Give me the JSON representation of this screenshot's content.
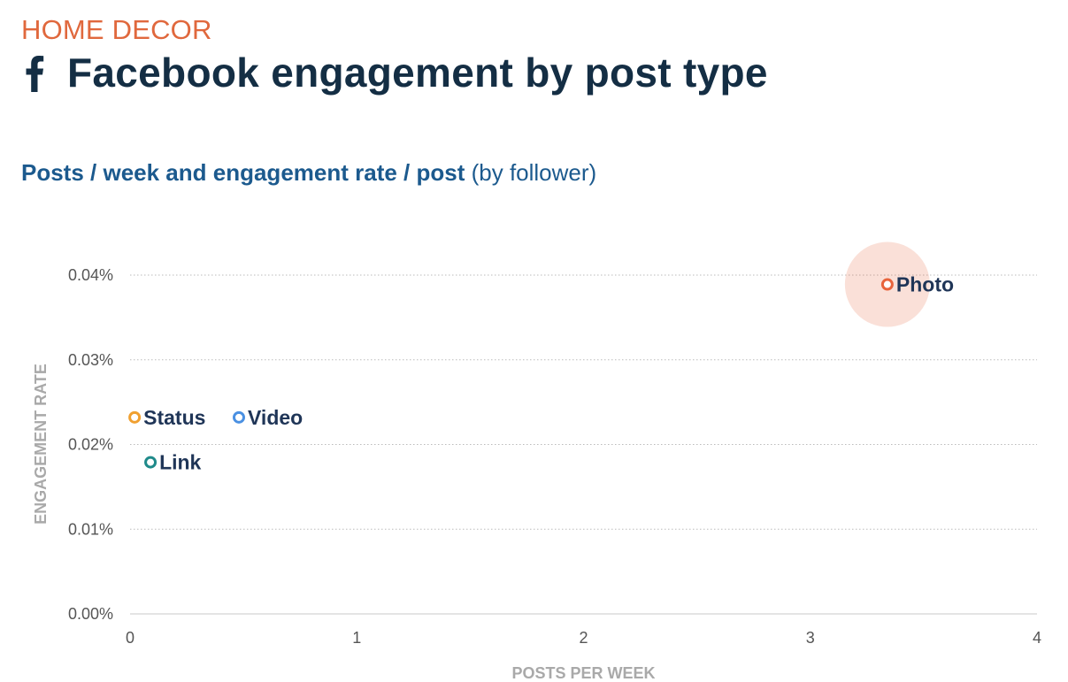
{
  "header": {
    "category": "HOME DECOR",
    "title": "Facebook engagement by post type",
    "subtitle_bold": "Posts / week and engagement rate / post",
    "subtitle_normal": " (by follower)"
  },
  "icons": {
    "brand": "facebook-icon"
  },
  "colors": {
    "category": "#e0683d",
    "title": "#142e44",
    "subtitle": "#1c5a8e",
    "axis_title": "#a9a9a9",
    "tick_label": "#555555",
    "point_label": "#1f3557",
    "grid": "#bbbbbb"
  },
  "chart_data": {
    "type": "scatter",
    "xlabel": "POSTS PER WEEK",
    "ylabel": "ENGAGEMENT RATE",
    "xlim": [
      0,
      4
    ],
    "ylim": [
      0,
      0.04
    ],
    "x_ticks": [
      0,
      1,
      2,
      3,
      4
    ],
    "x_tick_labels": [
      "0",
      "1",
      "2",
      "3",
      "4"
    ],
    "y_ticks": [
      0,
      0.01,
      0.02,
      0.03,
      0.04
    ],
    "y_tick_labels": [
      "0.00%",
      "0.01%",
      "0.02%",
      "0.03%",
      "0.04%"
    ],
    "grid": true,
    "points": [
      {
        "label": "Photo",
        "x": 3.34,
        "y": 0.0389,
        "color": "#e8643c",
        "highlight": true
      },
      {
        "label": "Status",
        "x": 0.02,
        "y": 0.0232,
        "color": "#f0a030",
        "highlight": false
      },
      {
        "label": "Video",
        "x": 0.48,
        "y": 0.0232,
        "color": "#4a90e2",
        "highlight": false
      },
      {
        "label": "Link",
        "x": 0.09,
        "y": 0.0179,
        "color": "#1f8a8a",
        "highlight": false
      }
    ]
  }
}
